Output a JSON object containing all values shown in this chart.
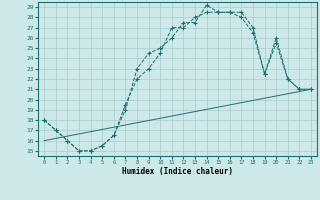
{
  "xlabel": "Humidex (Indice chaleur)",
  "xlim": [
    -0.5,
    23.5
  ],
  "ylim": [
    14.5,
    29.5
  ],
  "xticks": [
    0,
    1,
    2,
    3,
    4,
    5,
    6,
    7,
    8,
    9,
    10,
    11,
    12,
    13,
    14,
    15,
    16,
    17,
    18,
    19,
    20,
    21,
    22,
    23
  ],
  "yticks": [
    15,
    16,
    17,
    18,
    19,
    20,
    21,
    22,
    23,
    24,
    25,
    26,
    27,
    28,
    29
  ],
  "bg_color": "#cde8e8",
  "line_color": "#1e6e6e",
  "grid_color": "#aacccc",
  "line1_x": [
    0,
    1,
    2,
    3,
    4,
    5,
    6,
    7,
    8,
    9,
    10,
    11,
    12,
    13,
    14,
    15,
    16,
    17,
    18,
    19,
    20,
    21,
    22,
    23
  ],
  "line1_y": [
    18.0,
    17.0,
    16.0,
    15.0,
    15.0,
    15.5,
    16.5,
    19.0,
    23.0,
    24.5,
    25.0,
    26.0,
    27.5,
    27.5,
    29.2,
    28.5,
    28.5,
    28.5,
    27.0,
    22.5,
    25.5,
    22.0,
    21.0,
    21.0
  ],
  "line2_x": [
    0,
    1,
    2,
    3,
    4,
    5,
    6,
    7,
    8,
    9,
    10,
    11,
    12,
    13,
    14,
    15,
    16,
    17,
    18,
    19,
    20,
    21,
    22,
    23
  ],
  "line2_y": [
    18.0,
    17.0,
    16.0,
    15.0,
    15.0,
    15.5,
    16.5,
    19.5,
    22.0,
    23.0,
    24.5,
    27.0,
    27.0,
    28.0,
    28.5,
    28.5,
    28.5,
    28.0,
    26.5,
    22.5,
    26.0,
    22.0,
    21.0,
    21.0
  ],
  "line3_x": [
    0,
    23
  ],
  "line3_y": [
    16.0,
    21.0
  ]
}
